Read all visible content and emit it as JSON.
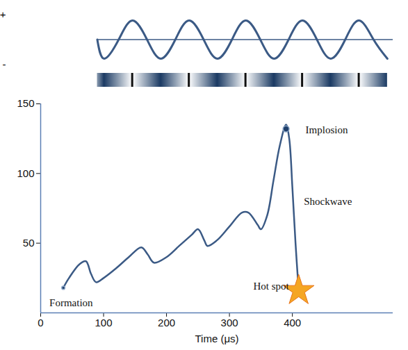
{
  "chart_data": [
    {
      "type": "line",
      "x": [
        90,
        101,
        124,
        146,
        169,
        191,
        214,
        236,
        259,
        281,
        304,
        326,
        349,
        371,
        394,
        416,
        439,
        461,
        484,
        506,
        529,
        551
      ],
      "values": [
        0,
        -1,
        0,
        1,
        0,
        -1,
        0,
        1,
        0,
        -1,
        0,
        1,
        0,
        -1,
        0,
        1,
        0,
        -1,
        0,
        1,
        0,
        -1
      ],
      "color": "#3b5a85",
      "xlim": [
        0,
        560
      ],
      "ylim": [
        -1.4,
        1.4
      ],
      "yticks": [
        {
          "value": 1.3,
          "label": "+"
        },
        {
          "value": -1.3,
          "label": "-"
        }
      ],
      "tick_labels": "y"
    },
    {
      "type": "line",
      "x_label": "Time (μs)",
      "x": [
        36,
        45,
        62,
        72,
        80,
        88,
        100,
        120,
        140,
        160,
        170,
        180,
        200,
        220,
        240,
        250,
        260,
        265,
        280,
        300,
        320,
        330,
        345,
        350,
        360,
        370,
        380,
        390,
        395,
        400,
        405,
        410
      ],
      "values": [
        18,
        25,
        35,
        37,
        28,
        22,
        25,
        32,
        40,
        47,
        42,
        36,
        40,
        48,
        56,
        60,
        52,
        48,
        52,
        62,
        72,
        72,
        63,
        60,
        70,
        95,
        120,
        135,
        125,
        90,
        50,
        16
      ],
      "color": "#3b5a85",
      "xlim": [
        0,
        560
      ],
      "xticks": [
        0,
        100,
        200,
        300,
        400
      ],
      "ylim": [
        0,
        150
      ],
      "yticks": [
        50,
        100,
        150
      ],
      "annotations": [
        {
          "text": "Formation",
          "x": 36,
          "y": 18,
          "marker": "circle"
        },
        {
          "text": "Implosion",
          "x": 390,
          "y": 132,
          "marker": "circle"
        },
        {
          "text": "Shockwave",
          "x": 405,
          "y": 80
        },
        {
          "text": "Hot spot",
          "x": 410,
          "y": 16,
          "marker": "star"
        }
      ]
    }
  ]
}
